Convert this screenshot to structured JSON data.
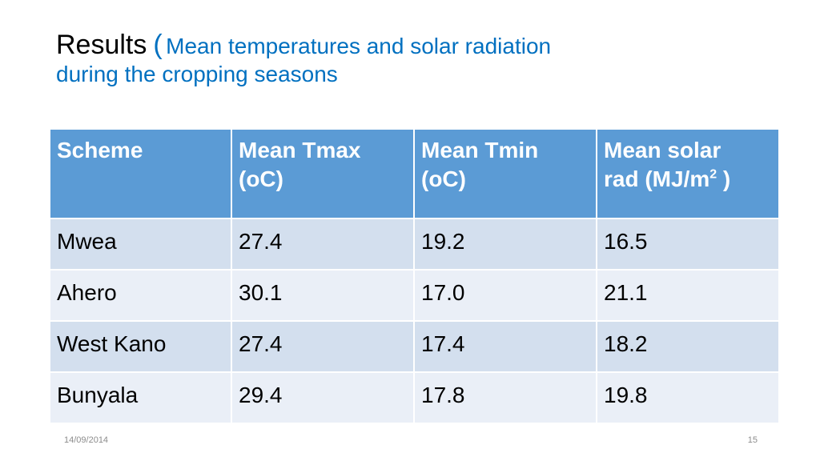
{
  "title": {
    "main": "Results",
    "paren": "(",
    "sub_line1": "Mean temperatures and solar radiation",
    "sub_line2": "during the cropping seasons"
  },
  "table": {
    "headers": {
      "col1": "Scheme",
      "col2_line1": " Mean Tmax",
      "col2_line2": "(oC)",
      "col3_line1": " Mean Tmin",
      "col3_line2": "(oC)",
      "col4_line1": "Mean solar",
      "col4_line2_pre": "rad (MJ/m",
      "col4_sup": "2",
      "col4_line2_post": " )"
    },
    "rows": [
      {
        "scheme": "Mwea",
        "tmax": "27.4",
        "tmin": "19.2",
        "solar": "16.5"
      },
      {
        "scheme": "Ahero",
        "tmax": "30.1",
        "tmin": "17.0",
        "solar": "21.1"
      },
      {
        "scheme": "West Kano",
        "tmax": "27.4",
        "tmin": "17.4",
        "solar": "18.2"
      },
      {
        "scheme": "Bunyala",
        "tmax": "29.4",
        "tmin": "17.8",
        "solar": "19.8"
      }
    ]
  },
  "footer": {
    "date": "14/09/2014",
    "page": "15"
  },
  "colors": {
    "header_bg": "#5b9bd5",
    "row_odd_bg": "#d3dfee",
    "row_even_bg": "#eaeff7",
    "accent_text": "#0070c0"
  }
}
